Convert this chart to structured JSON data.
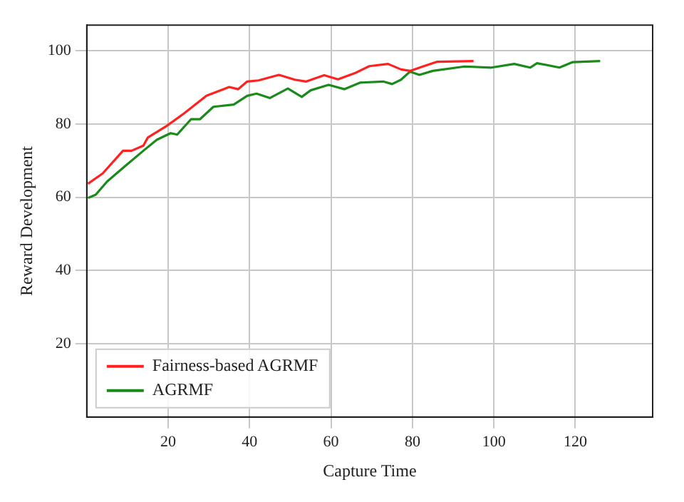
{
  "chart_data": {
    "type": "line",
    "xlabel": "Capture Time",
    "ylabel": "Reward Development",
    "xlim": [
      0,
      139
    ],
    "ylim": [
      0,
      107
    ],
    "xticks": [
      20,
      40,
      60,
      80,
      100,
      120
    ],
    "yticks": [
      20,
      40,
      60,
      80,
      100
    ],
    "grid": true,
    "legend": "bottom left",
    "marker": "none",
    "line_style": "solid",
    "series": [
      {
        "name": "Fairness-based AGRMF",
        "color": "#ff2020",
        "x": [
          0.3,
          3.9,
          8.9,
          11,
          13.9,
          15,
          19.4,
          23.9,
          29.4,
          35,
          37.2,
          39.4,
          42.2,
          47.2,
          51.1,
          53.9,
          58.3,
          61.7,
          66.1,
          69.4,
          74,
          77.2,
          79.4,
          82.8,
          86.1,
          95
        ],
        "values": [
          63.7,
          66.5,
          72.7,
          72.7,
          74.1,
          76.3,
          79.3,
          82.9,
          87.7,
          90.1,
          89.5,
          91.6,
          91.9,
          93.4,
          92.1,
          91.6,
          93.3,
          92.2,
          94,
          95.8,
          96.4,
          94.9,
          94.5,
          95.8,
          97,
          97.2
        ]
      },
      {
        "name": "AGRMF",
        "color": "#1a8a1a",
        "x": [
          0.3,
          2.2,
          5,
          9.4,
          13.9,
          17.2,
          20.6,
          22.2,
          25.6,
          27.8,
          31.1,
          36.1,
          39.4,
          41.7,
          45,
          49.4,
          52.8,
          55,
          59.4,
          63.3,
          67.2,
          72.8,
          75,
          77.2,
          79.4,
          81.7,
          85,
          92.8,
          99.4,
          105,
          108.9,
          110.6,
          116.1,
          119.4,
          126.1
        ],
        "values": [
          59.8,
          60.7,
          64.3,
          68.5,
          72.7,
          75.7,
          77.5,
          77.1,
          81.3,
          81.3,
          84.7,
          85.3,
          87.7,
          88.3,
          87.1,
          89.7,
          87.4,
          89.2,
          90.7,
          89.5,
          91.3,
          91.6,
          90.9,
          92.1,
          94.3,
          93.4,
          94.5,
          95.7,
          95.4,
          96.4,
          95.4,
          96.6,
          95.4,
          96.9,
          97.2
        ]
      }
    ]
  }
}
